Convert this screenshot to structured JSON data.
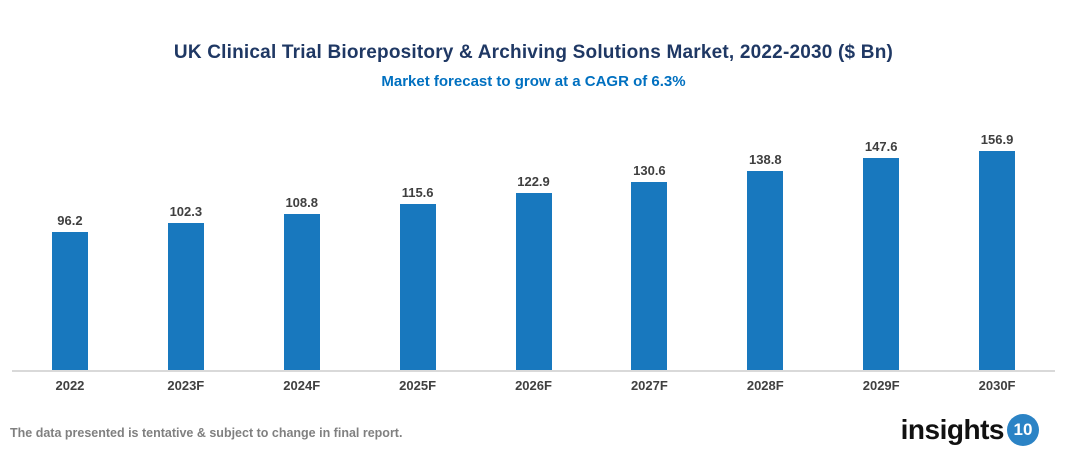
{
  "header": {
    "title": "UK Clinical Trial Biorepository & Archiving Solutions Market, 2022-2030 ($ Bn)",
    "subtitle": "Market forecast to grow at a CAGR of 6.3%"
  },
  "chart_data": {
    "type": "bar",
    "categories": [
      "2022",
      "2023F",
      "2024F",
      "2025F",
      "2026F",
      "2027F",
      "2028F",
      "2029F",
      "2030F"
    ],
    "values": [
      96.2,
      102.3,
      108.8,
      115.6,
      122.9,
      130.6,
      138.8,
      147.6,
      156.9
    ],
    "title": "UK Clinical Trial Biorepository & Archiving Solutions Market, 2022-2030 ($ Bn)",
    "xlabel": "",
    "ylabel": "",
    "ylim": [
      0,
      167
    ],
    "grid": false,
    "legend": "none",
    "data_labels": true,
    "bar_color": "#1878be"
  },
  "footer": {
    "disclaimer": "The data presented is tentative & subject to change in final report.",
    "logo_text": "insights",
    "logo_badge": "10"
  },
  "colors": {
    "title": "#1f3864",
    "subtitle": "#0070c0",
    "bar": "#1878be",
    "value_label": "#3f3f3f",
    "axis_line": "#d9d9d9",
    "disclaimer": "#808080",
    "logo_badge_bg": "#2b83c5"
  }
}
